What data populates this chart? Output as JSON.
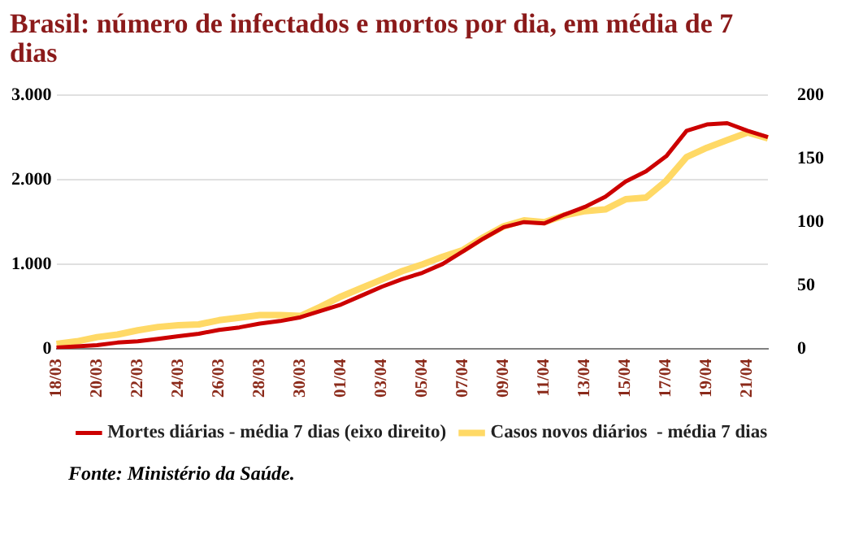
{
  "chart_data": {
    "type": "line",
    "title": "Brasil: número de infectados e mortos por dia, em média de 7 dias",
    "categories": [
      "18/03",
      null,
      "20/03",
      null,
      "22/03",
      null,
      "24/03",
      null,
      "26/03",
      null,
      "28/03",
      null,
      "30/03",
      null,
      "01/04",
      null,
      "03/04",
      null,
      "05/04",
      null,
      "07/04",
      null,
      "09/04",
      null,
      "11/04",
      null,
      "13/04",
      null,
      "15/04",
      null,
      "17/04",
      null,
      "19/04",
      null,
      "21/04",
      null
    ],
    "series": [
      {
        "name": "Casos novos diários  - média 7 dias",
        "color": "#ffd966",
        "values": [
          60,
          90,
          140,
          170,
          220,
          260,
          280,
          290,
          340,
          370,
          400,
          400,
          390,
          500,
          620,
          720,
          820,
          920,
          1000,
          1090,
          1170,
          1320,
          1450,
          1520,
          1500,
          1580,
          1630,
          1650,
          1770,
          1790,
          1990,
          2270,
          2380,
          2470,
          2560,
          2490
        ]
      },
      {
        "name": "Mortes diárias - média 7 dias (eixo direito)",
        "color": "#cc0000",
        "axis": "y2",
        "values": [
          1,
          2,
          3,
          5,
          6,
          8,
          10,
          12,
          15,
          17,
          20,
          22,
          25,
          30,
          35,
          42,
          49,
          55,
          60,
          67,
          77,
          87,
          96,
          100,
          99,
          106,
          112,
          120,
          132,
          140,
          152,
          172,
          177,
          178,
          172,
          167
        ]
      }
    ],
    "ylim": [
      0,
      3000
    ],
    "yticks": [
      {
        "value": 0,
        "label": "0"
      },
      {
        "value": 1000,
        "label": "1.000"
      },
      {
        "value": 2000,
        "label": "2.000"
      },
      {
        "value": 3000,
        "label": "3.000"
      }
    ],
    "y2lim": [
      0,
      200
    ],
    "y2ticks": [
      0,
      50,
      100,
      150,
      200
    ],
    "grid": "y",
    "legend": "bottom",
    "marker": "none",
    "line_style": "solid",
    "annotations": [
      "Fonte: Ministério da Saúde."
    ]
  }
}
